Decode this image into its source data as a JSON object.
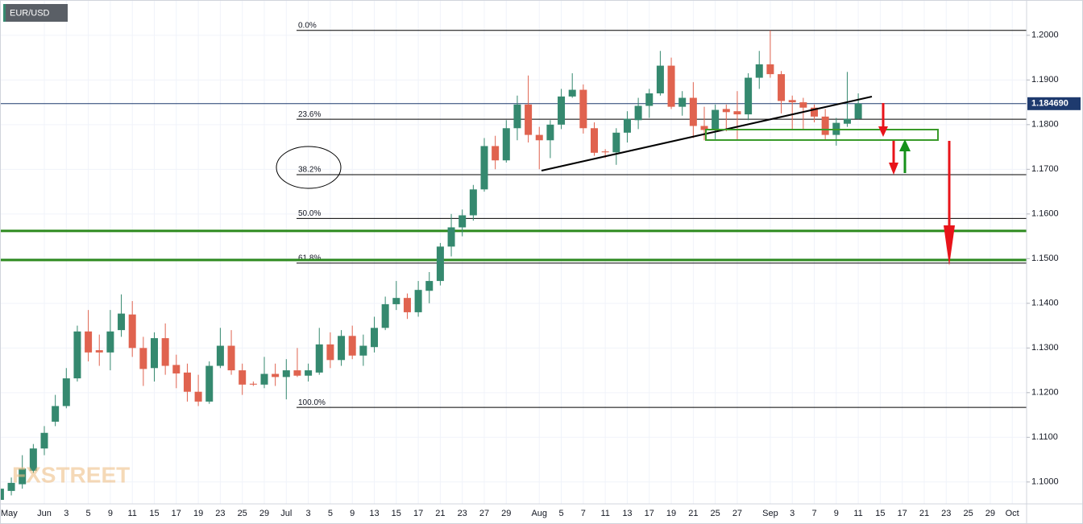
{
  "chart_data": {
    "type": "candlestick",
    "symbol": "EUR/USD",
    "watermark": "FXSTREET",
    "categories": [
      "May",
      null,
      null,
      null,
      "Jun",
      null,
      "3",
      null,
      "5",
      null,
      "9",
      null,
      "11",
      null,
      "15",
      null,
      "17",
      null,
      "19",
      null,
      "23",
      null,
      "25",
      null,
      "29",
      null,
      "Jul",
      null,
      "3",
      null,
      "5",
      null,
      "9",
      null,
      "13",
      null,
      "15",
      null,
      "17",
      null,
      "21",
      null,
      "23",
      null,
      "27",
      null,
      "29",
      null,
      null,
      "Aug",
      null,
      "5",
      null,
      "7",
      null,
      "11",
      null,
      "13",
      null,
      "17",
      null,
      "19",
      null,
      "21",
      null,
      "25",
      null,
      "27",
      null,
      null,
      "Sep",
      null,
      "3",
      null,
      "7",
      null,
      "9",
      null,
      "11",
      null,
      "15",
      null,
      "17",
      null,
      "21",
      null,
      "23",
      null,
      "25",
      null,
      "29",
      null,
      "Oct"
    ],
    "open": [
      1.096,
      1.098,
      1.0995,
      1.1025,
      1.1075,
      1.1135,
      1.117,
      1.1232,
      1.1337,
      1.1295,
      1.129,
      1.134,
      1.1375,
      1.13,
      1.1255,
      1.1322,
      1.1262,
      1.1245,
      1.1202,
      1.118,
      1.126,
      1.1305,
      1.125,
      1.122,
      1.1218,
      1.1242,
      1.1235,
      1.125,
      1.1238,
      1.1245,
      1.1308,
      1.1273,
      1.1327,
      1.1283,
      1.1302,
      1.1345,
      1.1398,
      1.1412,
      1.138,
      1.1428,
      1.145,
      1.1527,
      1.157,
      1.1597,
      1.1655,
      1.1752,
      1.172,
      1.1792,
      1.1845,
      1.1777,
      1.1765,
      1.18,
      1.1863,
      1.1878,
      1.1792,
      1.174,
      1.1738,
      1.1782,
      1.181,
      1.1842,
      1.187,
      1.1932,
      1.184,
      1.186,
      1.1797,
      1.1788,
      1.1835,
      1.183,
      1.1823,
      1.1905,
      1.1935,
      1.1913,
      1.1855,
      1.185,
      1.1838,
      1.1818,
      1.1777,
      1.1802,
      1.1813,
      null,
      null,
      null,
      null,
      null,
      null,
      null,
      null,
      null,
      null,
      null,
      null,
      null,
      null
    ],
    "high": [
      1.0995,
      1.101,
      1.106,
      1.1085,
      1.1125,
      1.1195,
      1.1255,
      1.135,
      1.1385,
      1.133,
      1.1385,
      1.142,
      1.1405,
      1.1325,
      1.1335,
      1.1355,
      1.1285,
      1.1265,
      1.124,
      1.127,
      1.1345,
      1.134,
      1.1265,
      1.1225,
      1.128,
      1.1265,
      1.1275,
      1.13,
      1.1265,
      1.1345,
      1.1335,
      1.134,
      1.135,
      1.133,
      1.137,
      1.1415,
      1.145,
      1.1422,
      1.145,
      1.147,
      1.1535,
      1.16,
      1.161,
      1.1665,
      1.177,
      1.1775,
      1.181,
      1.1865,
      1.191,
      1.1795,
      1.181,
      1.188,
      1.1915,
      1.189,
      1.1805,
      1.1745,
      1.1792,
      1.183,
      1.186,
      1.188,
      1.1965,
      1.195,
      1.1875,
      1.1895,
      1.184,
      1.1845,
      1.1845,
      1.1875,
      1.1915,
      1.1965,
      1.2011,
      1.192,
      1.1865,
      1.186,
      1.1845,
      1.1835,
      1.1815,
      1.1918,
      1.187,
      null,
      null,
      null,
      null,
      null,
      null,
      null,
      null,
      null,
      null,
      null,
      null,
      null,
      null
    ],
    "low": [
      1.0955,
      1.097,
      1.0985,
      1.102,
      1.106,
      1.1125,
      1.1165,
      1.1225,
      1.127,
      1.126,
      1.125,
      1.1325,
      1.128,
      1.1215,
      1.1225,
      1.124,
      1.121,
      1.118,
      1.117,
      1.1175,
      1.1255,
      1.124,
      1.1195,
      1.1215,
      1.121,
      1.1215,
      1.1185,
      1.1235,
      1.1225,
      1.124,
      1.1255,
      1.126,
      1.1275,
      1.126,
      1.129,
      1.134,
      1.1385,
      1.1365,
      1.137,
      1.14,
      1.144,
      1.1505,
      1.155,
      1.1585,
      1.165,
      1.17,
      1.1715,
      1.1765,
      1.176,
      1.17,
      1.1725,
      1.179,
      1.186,
      1.178,
      1.173,
      1.1725,
      1.171,
      1.176,
      1.179,
      1.1815,
      1.1865,
      1.1835,
      1.182,
      1.177,
      1.1765,
      1.1765,
      1.1785,
      1.1765,
      1.181,
      1.188,
      1.1905,
      1.1825,
      1.179,
      1.179,
      1.1805,
      1.1765,
      1.1753,
      1.1795,
      1.1812,
      null,
      null,
      null,
      null,
      null,
      null,
      null,
      null,
      null,
      null,
      null,
      null,
      null,
      null
    ],
    "close": [
      1.0985,
      1.0998,
      1.103,
      1.1075,
      1.111,
      1.117,
      1.1232,
      1.1337,
      1.129,
      1.129,
      1.1337,
      1.1377,
      1.13,
      1.1253,
      1.1322,
      1.126,
      1.1243,
      1.1202,
      1.118,
      1.126,
      1.1305,
      1.125,
      1.1218,
      1.1218,
      1.1242,
      1.1235,
      1.125,
      1.1238,
      1.125,
      1.1308,
      1.1273,
      1.1327,
      1.1283,
      1.1305,
      1.1345,
      1.1398,
      1.1412,
      1.138,
      1.143,
      1.145,
      1.1527,
      1.157,
      1.1597,
      1.1655,
      1.1752,
      1.172,
      1.1792,
      1.1845,
      1.1777,
      1.1765,
      1.18,
      1.1863,
      1.1878,
      1.1792,
      1.1737,
      1.1738,
      1.1782,
      1.1813,
      1.1842,
      1.187,
      1.1932,
      1.184,
      1.186,
      1.1797,
      1.1788,
      1.1833,
      1.1828,
      1.1823,
      1.1905,
      1.1935,
      1.1913,
      1.1853,
      1.185,
      1.1838,
      1.1818,
      1.1777,
      1.1804,
      1.1813,
      1.1847,
      null,
      null,
      null,
      null,
      null,
      null,
      null,
      null,
      null,
      null,
      null,
      null,
      null,
      null
    ],
    "up_color": "#35896f",
    "down_color": "#e0634f",
    "ylim": [
      1.0951,
      1.2079
    ],
    "yticks": [
      {
        "value": 1.1,
        "label": "1.1000"
      },
      {
        "value": 1.11,
        "label": "1.1100"
      },
      {
        "value": 1.12,
        "label": "1.1200"
      },
      {
        "value": 1.13,
        "label": "1.1300"
      },
      {
        "value": 1.14,
        "label": "1.1400"
      },
      {
        "value": 1.15,
        "label": "1.1500"
      },
      {
        "value": 1.16,
        "label": "1.1600"
      },
      {
        "value": 1.17,
        "label": "1.1700"
      },
      {
        "value": 1.18,
        "label": "1.1800"
      },
      {
        "value": 1.19,
        "label": "1.1900"
      },
      {
        "value": 1.2,
        "label": "1.2000"
      }
    ],
    "grid": true,
    "last_price": {
      "value": 1.18469,
      "label": "1.184690"
    },
    "fib_levels": [
      {
        "label": "0.0%",
        "value": 1.2011
      },
      {
        "label": "23.6%",
        "value": 1.1812
      },
      {
        "label": "38.2%",
        "value": 1.1688
      },
      {
        "label": "50.0%",
        "value": 1.159
      },
      {
        "label": "61.8%",
        "value": 1.149
      },
      {
        "label": "100.0%",
        "value": 1.1167
      }
    ],
    "support_lines": {
      "color": "#2d8a1e",
      "values": [
        1.1562,
        1.1497
      ]
    }
  }
}
